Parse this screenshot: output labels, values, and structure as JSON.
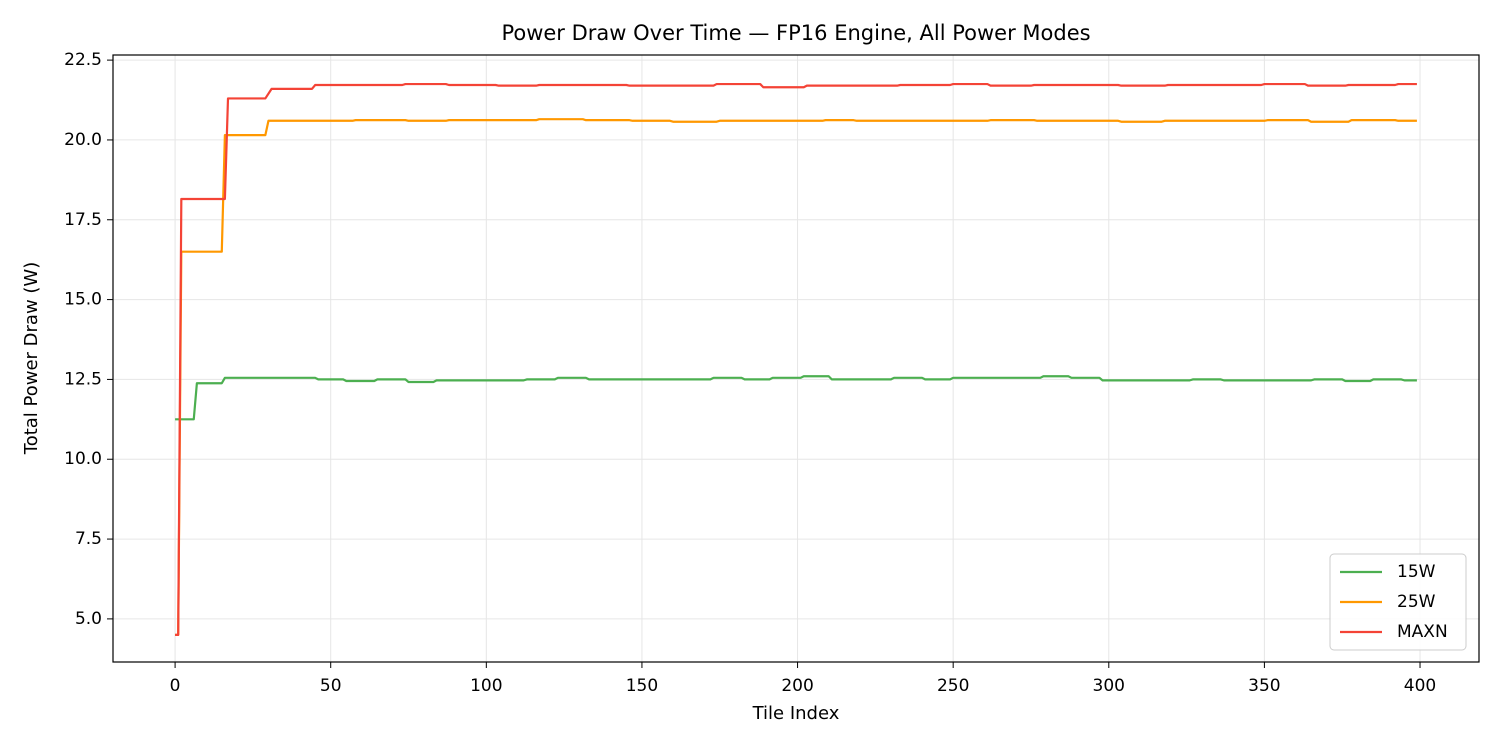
{
  "chart_data": {
    "type": "line",
    "title": "Power Draw Over Time — FP16 Engine, All Power Modes",
    "xlabel": "Tile Index",
    "ylabel": "Total Power Draw (W)",
    "xlim": [
      -19.95,
      418.95
    ],
    "xticks": [
      0,
      50,
      100,
      150,
      200,
      250,
      300,
      350,
      400
    ],
    "ylim": [
      3.65,
      22.66
    ],
    "yticks": [
      {
        "value": 5,
        "label": "5.0"
      },
      7.5,
      {
        "value": 10,
        "label": "10.0"
      },
      12.5,
      {
        "value": 15,
        "label": "15.0"
      },
      17.5,
      {
        "value": 20,
        "label": "20.0"
      },
      22.5
    ],
    "grid": true,
    "legend": "lower right",
    "series": [
      {
        "name": "15W",
        "color": "#4caf50",
        "x": [
          0,
          6,
          7,
          15,
          16,
          45,
          46,
          54,
          55,
          64,
          65,
          74,
          75,
          83,
          84,
          112,
          113,
          122,
          123,
          132,
          133,
          172,
          173,
          182,
          183,
          191,
          192,
          201,
          202,
          210,
          211,
          230,
          231,
          240,
          241,
          249,
          250,
          278,
          279,
          287,
          288,
          297,
          298,
          326,
          327,
          336,
          337,
          365,
          366,
          375,
          376,
          384,
          385,
          394,
          395,
          399
        ],
        "values": [
          11.25,
          11.25,
          12.38,
          12.38,
          12.55,
          12.55,
          12.5,
          12.5,
          12.45,
          12.45,
          12.5,
          12.5,
          12.42,
          12.42,
          12.47,
          12.47,
          12.5,
          12.5,
          12.55,
          12.55,
          12.5,
          12.5,
          12.55,
          12.55,
          12.5,
          12.5,
          12.55,
          12.55,
          12.6,
          12.6,
          12.5,
          12.5,
          12.55,
          12.55,
          12.5,
          12.5,
          12.55,
          12.55,
          12.6,
          12.6,
          12.55,
          12.55,
          12.47,
          12.47,
          12.5,
          12.5,
          12.47,
          12.47,
          12.5,
          12.5,
          12.45,
          12.45,
          12.5,
          12.5,
          12.47,
          12.47
        ]
      },
      {
        "name": "25W",
        "color": "#ff9800",
        "x": [
          0,
          1,
          2,
          15,
          16,
          29,
          30,
          57,
          58,
          74,
          75,
          87,
          88,
          116,
          117,
          131,
          132,
          146,
          147,
          159,
          160,
          174,
          175,
          208,
          209,
          218,
          219,
          261,
          262,
          276,
          277,
          303,
          304,
          317,
          318,
          350,
          351,
          364,
          365,
          377,
          378,
          392,
          393,
          399
        ],
        "values": [
          4.5,
          4.5,
          16.5,
          16.5,
          20.15,
          20.15,
          20.6,
          20.6,
          20.62,
          20.62,
          20.6,
          20.6,
          20.62,
          20.62,
          20.65,
          20.65,
          20.62,
          20.62,
          20.6,
          20.6,
          20.57,
          20.57,
          20.6,
          20.6,
          20.62,
          20.62,
          20.6,
          20.6,
          20.62,
          20.62,
          20.6,
          20.6,
          20.57,
          20.57,
          20.6,
          20.6,
          20.62,
          20.62,
          20.57,
          20.57,
          20.62,
          20.62,
          20.6,
          20.6
        ]
      },
      {
        "name": "MAXN",
        "color": "#f44336",
        "x": [
          0,
          1,
          2,
          16,
          17,
          29,
          31,
          44,
          45,
          73,
          74,
          87,
          88,
          103,
          104,
          116,
          117,
          145,
          146,
          173,
          174,
          188,
          189,
          202,
          203,
          232,
          233,
          249,
          250,
          261,
          262,
          275,
          276,
          303,
          304,
          318,
          319,
          349,
          350,
          363,
          364,
          376,
          377,
          392,
          393,
          399
        ],
        "values": [
          4.5,
          4.5,
          18.15,
          18.15,
          21.3,
          21.3,
          21.6,
          21.6,
          21.72,
          21.72,
          21.75,
          21.75,
          21.72,
          21.72,
          21.7,
          21.7,
          21.72,
          21.72,
          21.7,
          21.7,
          21.75,
          21.75,
          21.65,
          21.65,
          21.7,
          21.7,
          21.72,
          21.72,
          21.75,
          21.75,
          21.7,
          21.7,
          21.72,
          21.72,
          21.7,
          21.7,
          21.72,
          21.72,
          21.75,
          21.75,
          21.7,
          21.7,
          21.72,
          21.72,
          21.75,
          21.75
        ]
      }
    ]
  }
}
